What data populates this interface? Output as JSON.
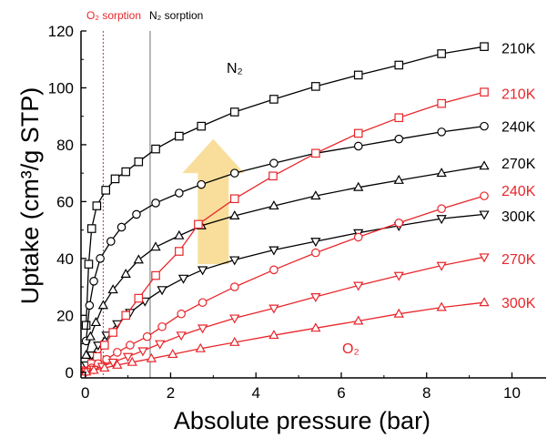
{
  "chart_data": {
    "type": "scatter",
    "title": "",
    "xlabel": "Absolute pressure (bar)",
    "ylabel": "Uptake (cm³/g STP)",
    "xlim": [
      -0.1,
      10.8
    ],
    "ylim": [
      -2,
      120
    ],
    "xticks": [
      0,
      2,
      4,
      6,
      8,
      10
    ],
    "yticks": [
      0,
      20,
      40,
      60,
      80,
      100,
      120
    ],
    "grid": false,
    "annotations": {
      "o2_sorption": "O₂ sorption",
      "n2_sorption": "N₂ sorption",
      "n2_region": "N₂",
      "o2_region": "O₂",
      "o2_sorption_x": 0.42,
      "n2_sorption_x": 1.52
    },
    "series": [
      {
        "name": "210K",
        "gas": "N2",
        "marker": "square",
        "color": "#000000",
        "x": [
          0.02,
          0.08,
          0.15,
          0.27,
          0.48,
          0.7,
          0.95,
          1.25,
          1.65,
          2.2,
          2.72,
          3.5,
          4.42,
          5.4,
          6.4,
          7.35,
          8.35,
          9.35
        ],
        "y": [
          16.5,
          38,
          50.5,
          58.5,
          64,
          68,
          70.5,
          74,
          78.5,
          83,
          86.5,
          91.5,
          96,
          100.5,
          104.5,
          108,
          112,
          114.5
        ]
      },
      {
        "name": "240K",
        "gas": "N2",
        "marker": "circle",
        "color": "#000000",
        "x": [
          0.02,
          0.1,
          0.2,
          0.35,
          0.6,
          0.85,
          1.2,
          1.65,
          2.2,
          2.72,
          3.5,
          4.42,
          5.4,
          6.4,
          7.35,
          8.35,
          9.35
        ],
        "y": [
          11,
          23.5,
          32,
          40,
          46,
          51,
          55.5,
          59.5,
          63,
          66,
          70,
          73.5,
          77,
          79.5,
          82,
          84.5,
          86.5
        ]
      },
      {
        "name": "270K",
        "gas": "N2",
        "marker": "triangle-up",
        "color": "#000000",
        "x": [
          0.02,
          0.12,
          0.25,
          0.42,
          0.65,
          0.95,
          1.25,
          1.65,
          2.2,
          2.72,
          3.5,
          4.42,
          5.4,
          6.4,
          7.35,
          8.35,
          9.35
        ],
        "y": [
          6,
          12.5,
          17.5,
          23.5,
          29,
          34.5,
          39.5,
          44,
          48,
          51.5,
          55,
          58.5,
          62,
          65,
          67.5,
          70,
          72.5
        ]
      },
      {
        "name": "300K",
        "gas": "N2",
        "marker": "triangle-down",
        "color": "#000000",
        "x": [
          0.02,
          0.15,
          0.3,
          0.5,
          0.75,
          1.05,
          1.4,
          1.8,
          2.3,
          2.75,
          3.5,
          4.42,
          5.4,
          6.4,
          7.35,
          8.35,
          9.35
        ],
        "y": [
          2.5,
          6,
          9.5,
          13,
          17,
          21,
          25,
          29,
          33,
          36,
          39.5,
          43,
          46,
          49,
          51.5,
          54,
          55.5
        ]
      },
      {
        "name": "210K",
        "gas": "O2",
        "marker": "square",
        "color": "#e8262b",
        "x": [
          0.02,
          0.15,
          0.28,
          0.45,
          0.65,
          0.95,
          1.25,
          1.65,
          2.2,
          2.65,
          3.5,
          4.4,
          5.4,
          6.4,
          7.35,
          8.35,
          9.35
        ],
        "y": [
          0.5,
          3,
          5.5,
          9.5,
          14,
          20,
          26,
          34,
          42.5,
          52,
          61,
          69,
          77,
          84,
          89.5,
          94.5,
          98.5
        ]
      },
      {
        "name": "240K",
        "gas": "O2",
        "marker": "circle",
        "color": "#e8262b",
        "x": [
          0.02,
          0.15,
          0.3,
          0.5,
          0.75,
          1.05,
          1.45,
          1.8,
          2.25,
          2.75,
          3.5,
          4.42,
          5.4,
          6.4,
          7.35,
          8.35,
          9.35
        ],
        "y": [
          0.3,
          1.5,
          3,
          4.5,
          7,
          9.5,
          12.5,
          16,
          20.5,
          24.5,
          30,
          36,
          42,
          47.5,
          52.5,
          57.5,
          62
        ]
      },
      {
        "name": "270K",
        "gas": "O2",
        "marker": "triangle-down",
        "color": "#e8262b",
        "x": [
          0.02,
          0.2,
          0.4,
          0.65,
          1.0,
          1.35,
          1.75,
          2.25,
          2.75,
          3.5,
          4.42,
          5.4,
          6.4,
          7.35,
          8.35,
          9.35
        ],
        "y": [
          0.2,
          1,
          2,
          3.5,
          5.5,
          7.5,
          10,
          13,
          15.5,
          19,
          22.5,
          26.5,
          30.5,
          34,
          37.5,
          40.5
        ]
      },
      {
        "name": "300K",
        "gas": "O2",
        "marker": "triangle-up",
        "color": "#e8262b",
        "x": [
          0.02,
          0.2,
          0.45,
          0.75,
          1.1,
          1.55,
          2.05,
          2.7,
          3.5,
          4.42,
          5.4,
          6.4,
          7.35,
          8.35,
          9.35
        ],
        "y": [
          0.1,
          0.7,
          1.5,
          2.5,
          3.5,
          4.8,
          6.3,
          8.3,
          10.5,
          13,
          15.5,
          18,
          20.5,
          22.8,
          24.5
        ]
      }
    ],
    "labels": [
      {
        "text": "210K",
        "color": "#000000",
        "y": 114
      },
      {
        "text": "210K",
        "color": "#e8262b",
        "y": 98
      },
      {
        "text": "240K",
        "color": "#000000",
        "y": 86.5
      },
      {
        "text": "270K",
        "color": "#000000",
        "y": 73.5
      },
      {
        "text": "240K",
        "color": "#e8262b",
        "y": 64
      },
      {
        "text": "300K",
        "color": "#000000",
        "y": 55
      },
      {
        "text": "270K",
        "color": "#e8262b",
        "y": 40
      },
      {
        "text": "300K",
        "color": "#e8262b",
        "y": 24.5
      }
    ],
    "colors": {
      "n2": "#000000",
      "o2": "#e8262b",
      "arrow": "#f8d88a",
      "o2_line": "#a04060",
      "n2_line": "#707070"
    }
  }
}
